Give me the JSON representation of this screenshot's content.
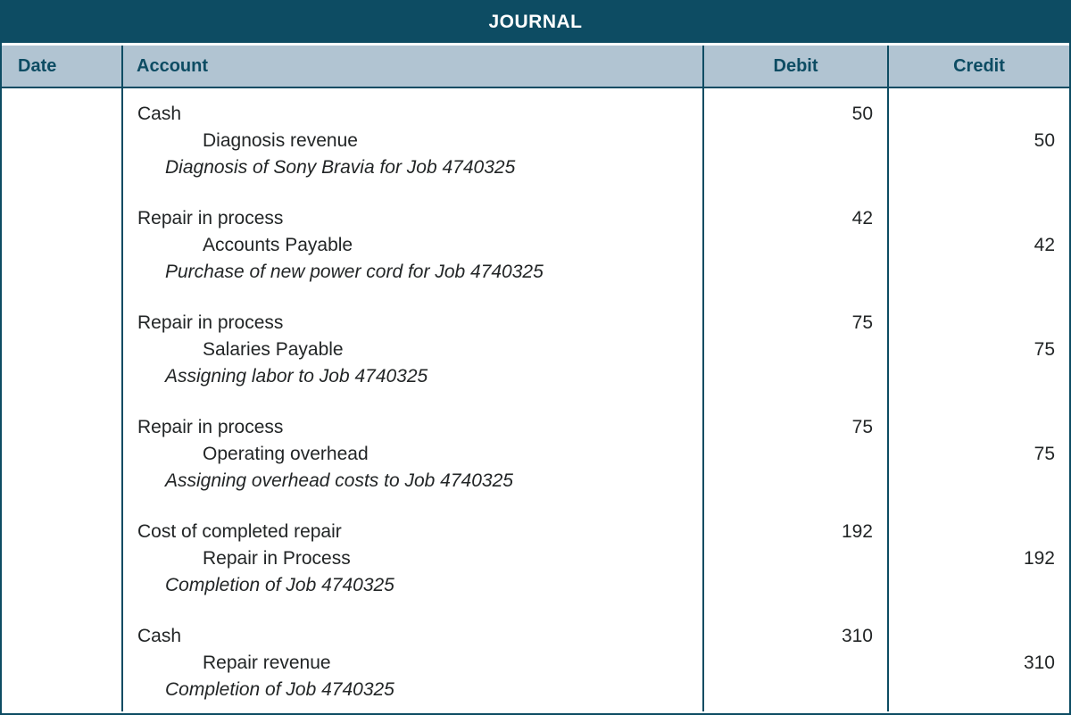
{
  "journal": {
    "title": "JOURNAL",
    "columns": {
      "date": "Date",
      "account": "Account",
      "debit": "Debit",
      "credit": "Credit"
    },
    "entries": [
      {
        "debit_account": "Cash",
        "credit_account": "Diagnosis revenue",
        "memo": "Diagnosis of Sony Bravia for Job 4740325",
        "debit": "50",
        "credit": "50"
      },
      {
        "debit_account": "Repair in process",
        "credit_account": "Accounts Payable",
        "memo": "Purchase of new power cord for Job 4740325",
        "debit": "42",
        "credit": "42"
      },
      {
        "debit_account": "Repair in process",
        "credit_account": "Salaries Payable",
        "memo": "Assigning labor to Job 4740325",
        "debit": "75",
        "credit": "75"
      },
      {
        "debit_account": "Repair in process",
        "credit_account": "Operating overhead",
        "memo": "Assigning overhead costs to Job 4740325",
        "debit": "75",
        "credit": "75"
      },
      {
        "debit_account": "Cost of completed repair",
        "credit_account": "Repair in Process",
        "memo": "Completion of Job 4740325",
        "debit": "192",
        "credit": "192"
      },
      {
        "debit_account": "Cash",
        "credit_account": "Repair revenue",
        "memo": "Completion of Job 4740325",
        "debit": "310",
        "credit": "310"
      }
    ],
    "colors": {
      "header_teal": "#0d4c63",
      "column_header_bg": "#b1c4d2",
      "body_text": "#222526",
      "title_text": "#ffffff"
    }
  }
}
